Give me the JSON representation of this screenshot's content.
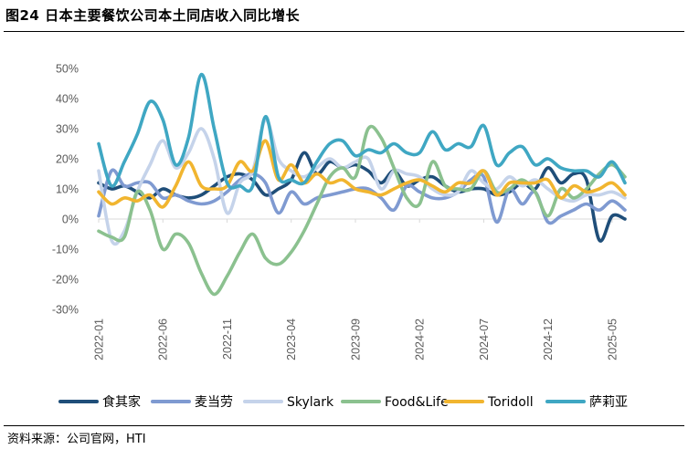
{
  "header": {
    "title": "图24 日本主要餐饮公司本土同店收入同比增长"
  },
  "footer": {
    "source": "资料来源：公司官网，HTI"
  },
  "chart_data": {
    "type": "line",
    "title": "图24 日本主要餐饮公司本土同店收入同比增长",
    "xlabel": "",
    "ylabel": "",
    "ylim": [
      -30,
      50
    ],
    "yticks": [
      -30,
      -20,
      -10,
      0,
      10,
      20,
      30,
      40,
      50
    ],
    "ytick_labels": [
      "-30%",
      "-20%",
      "-10%",
      "0%",
      "10%",
      "20%",
      "30%",
      "40%",
      "50%"
    ],
    "x_tick_labels": [
      "2022-01",
      "2022-06",
      "2022-11",
      "2023-04",
      "2023-09",
      "2024-02",
      "2024-07",
      "2024-12",
      "2025-05"
    ],
    "x_tick_index": [
      0,
      5,
      10,
      15,
      20,
      25,
      30,
      35,
      40
    ],
    "n_points": 42,
    "series": [
      {
        "name": "食其家",
        "color": "#1F4E79",
        "values": [
          12,
          10,
          11,
          9,
          7,
          10,
          8,
          7,
          8,
          11,
          14,
          15,
          13,
          8,
          10,
          13,
          22,
          15,
          19,
          17,
          18,
          16,
          12,
          16,
          11,
          13,
          14,
          11,
          9,
          10,
          10,
          8,
          9,
          12,
          10,
          17,
          12,
          15,
          13,
          -7,
          1,
          0
        ]
      },
      {
        "name": "麦当劳",
        "color": "#7F9AD1",
        "values": [
          1,
          16,
          11,
          12,
          12,
          7,
          8,
          6,
          5,
          6,
          9,
          13,
          15,
          12,
          2,
          9,
          5,
          7,
          8,
          9,
          10,
          10,
          7,
          3,
          11,
          9,
          7,
          7,
          9,
          13,
          14,
          -1,
          10,
          5,
          9,
          -1,
          1,
          3,
          5,
          3,
          6,
          3
        ]
      },
      {
        "name": "Skylark",
        "color": "#C5D3EA",
        "values": [
          16,
          -7,
          -4,
          9,
          18,
          26,
          17,
          22,
          30,
          20,
          2,
          12,
          16,
          33,
          20,
          16,
          14,
          17,
          20,
          17,
          19,
          20,
          10,
          16,
          15,
          14,
          10,
          8,
          9,
          16,
          12,
          10,
          14,
          11,
          13,
          10,
          7,
          6,
          8,
          8,
          9,
          7
        ]
      },
      {
        "name": "Food&Life",
        "color": "#8BC18F",
        "values": [
          -4,
          -6,
          -6,
          9,
          3,
          -10,
          -5,
          -8,
          -18,
          -25,
          -19,
          -11,
          -5,
          -13,
          -15,
          -11,
          -4,
          5,
          14,
          17,
          14,
          30,
          27,
          17,
          7,
          5,
          19,
          11,
          10,
          10,
          16,
          9,
          10,
          13,
          9,
          1,
          10,
          7,
          10,
          15,
          18,
          14
        ]
      },
      {
        "name": "Toridoll",
        "color": "#F1B52F",
        "values": [
          9,
          5,
          7,
          6,
          8,
          4,
          11,
          19,
          11,
          10,
          11,
          19,
          16,
          26,
          13,
          18,
          12,
          15,
          12,
          13,
          10,
          9,
          8,
          10,
          12,
          13,
          11,
          9,
          12,
          12,
          16,
          8,
          12,
          12,
          12,
          13,
          7,
          11,
          9,
          10,
          12,
          8
        ]
      },
      {
        "name": "萨莉亚",
        "color": "#3FA7C3",
        "values": [
          25,
          11,
          19,
          28,
          39,
          33,
          18,
          27,
          48,
          30,
          12,
          11,
          11,
          34,
          14,
          13,
          12,
          19,
          25,
          26,
          21,
          23,
          22,
          25,
          22,
          22,
          29,
          23,
          25,
          24,
          31,
          18,
          22,
          24,
          18,
          20,
          17,
          16,
          16,
          14,
          19,
          12
        ]
      }
    ],
    "legend_position": "bottom"
  }
}
